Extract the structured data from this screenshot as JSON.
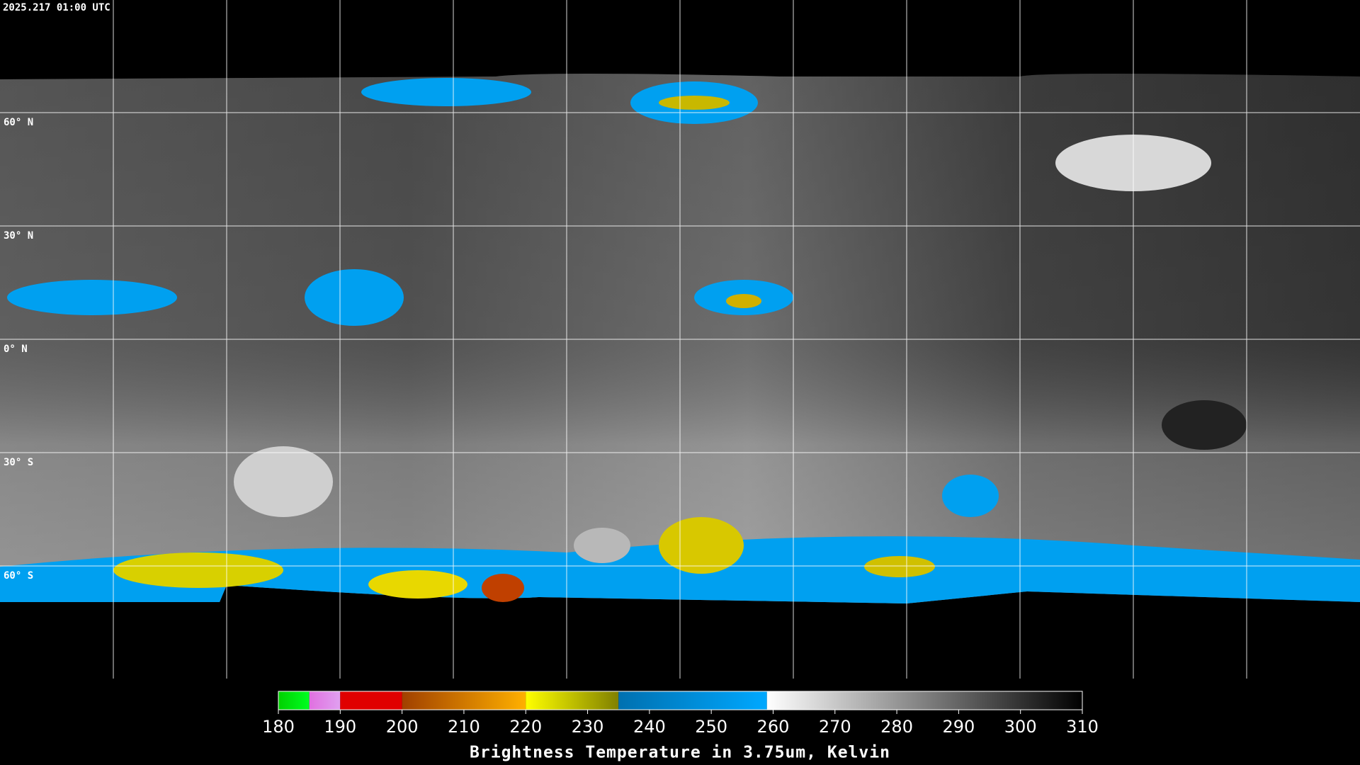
{
  "map": {
    "timestamp": "2025.217 01:00 UTC",
    "lat_labels": [
      {
        "lat": 60,
        "label": "60° N"
      },
      {
        "lat": 30,
        "label": "30° N"
      },
      {
        "lat": 0,
        "label": "0° N"
      },
      {
        "lat": -30,
        "label": "30° S"
      },
      {
        "lat": -60,
        "label": "60° S"
      }
    ]
  },
  "colorbar": {
    "title": "Brightness Temperature in 3.75um, Kelvin",
    "range": [
      180,
      310
    ],
    "ticks": [
      180,
      190,
      200,
      210,
      220,
      230,
      240,
      250,
      260,
      270,
      280,
      290,
      300,
      310
    ],
    "segments": [
      {
        "from": 180,
        "to": 185,
        "colors": [
          "#00d000",
          "#00ff20"
        ]
      },
      {
        "from": 185,
        "to": 190,
        "colors": [
          "#e070e0",
          "#e0a0f0"
        ]
      },
      {
        "from": 190,
        "to": 200,
        "colors": [
          "#e00000",
          "#e00000"
        ]
      },
      {
        "from": 200,
        "to": 220,
        "colors": [
          "#a04000",
          "#ffb000"
        ]
      },
      {
        "from": 220,
        "to": 235,
        "colors": [
          "#ffff00",
          "#808000"
        ]
      },
      {
        "from": 235,
        "to": 259,
        "colors": [
          "#0070b0",
          "#00a8ff"
        ]
      },
      {
        "from": 259,
        "to": 310,
        "colors": [
          "#ffffff",
          "#000000"
        ]
      }
    ]
  }
}
